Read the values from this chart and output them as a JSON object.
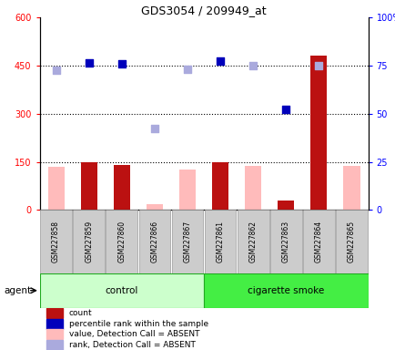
{
  "title": "GDS3054 / 209949_at",
  "samples": [
    "GSM227858",
    "GSM227859",
    "GSM227860",
    "GSM227866",
    "GSM227867",
    "GSM227861",
    "GSM227862",
    "GSM227863",
    "GSM227864",
    "GSM227865"
  ],
  "count_present": [
    null,
    150,
    140,
    null,
    null,
    148,
    null,
    30,
    480,
    null
  ],
  "count_absent": [
    135,
    null,
    null,
    18,
    125,
    null,
    138,
    null,
    null,
    138
  ],
  "rank_present": [
    null,
    458,
    456,
    null,
    null,
    465,
    null,
    315,
    null,
    null
  ],
  "rank_absent": [
    435,
    null,
    null,
    255,
    440,
    null,
    450,
    null,
    450,
    null
  ],
  "bar_color_present": "#bb1111",
  "bar_color_absent": "#ffbbbb",
  "dot_color_present": "#0000bb",
  "dot_color_absent": "#aaaadd",
  "ylim_left": [
    0,
    600
  ],
  "ylim_right": [
    0,
    100
  ],
  "yticks_left": [
    0,
    150,
    300,
    450,
    600
  ],
  "yticks_right": [
    0,
    25,
    50,
    75,
    100
  ],
  "ytick_labels_left": [
    "0",
    "150",
    "300",
    "450",
    "600"
  ],
  "ytick_labels_right": [
    "0",
    "25",
    "50",
    "75",
    "100%"
  ],
  "hlines": [
    150,
    300,
    450
  ],
  "ctrl_count": 5,
  "smoke_count": 5,
  "ctrl_label": "control",
  "smoke_label": "cigarette smoke",
  "ctrl_color": "#ccffcc",
  "smoke_color": "#44ee44",
  "agent_label": "agent",
  "legend_items": [
    {
      "color": "#bb1111",
      "label": "count"
    },
    {
      "color": "#0000bb",
      "label": "percentile rank within the sample"
    },
    {
      "color": "#ffbbbb",
      "label": "value, Detection Call = ABSENT"
    },
    {
      "color": "#aaaadd",
      "label": "rank, Detection Call = ABSENT"
    }
  ]
}
